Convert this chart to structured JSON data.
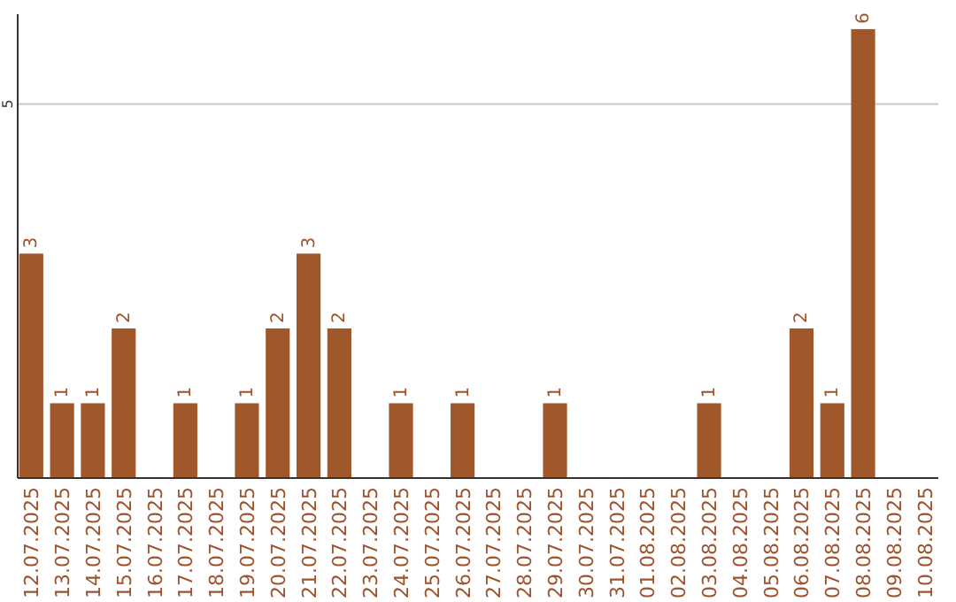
{
  "chart_data": {
    "type": "bar",
    "categories": [
      "12.07.2025",
      "13.07.2025",
      "14.07.2025",
      "15.07.2025",
      "16.07.2025",
      "17.07.2025",
      "18.07.2025",
      "19.07.2025",
      "20.07.2025",
      "21.07.2025",
      "22.07.2025",
      "23.07.2025",
      "24.07.2025",
      "25.07.2025",
      "26.07.2025",
      "27.07.2025",
      "28.07.2025",
      "29.07.2025",
      "30.07.2025",
      "31.07.2025",
      "01.08.2025",
      "02.08.2025",
      "03.08.2025",
      "04.08.2025",
      "05.08.2025",
      "06.08.2025",
      "07.08.2025",
      "08.08.2025",
      "09.08.2025",
      "10.08.2025"
    ],
    "values": [
      3,
      1,
      1,
      2,
      0,
      1,
      0,
      1,
      2,
      3,
      2,
      0,
      1,
      0,
      1,
      0,
      0,
      1,
      0,
      0,
      0,
      0,
      1,
      0,
      0,
      2,
      1,
      6,
      0,
      0
    ],
    "value_labels": [
      "3",
      "1",
      "1",
      "2",
      null,
      "1",
      null,
      "1",
      "2",
      "3",
      "2",
      null,
      "1",
      null,
      "1",
      null,
      null,
      "1",
      null,
      null,
      null,
      null,
      "1",
      null,
      null,
      "2",
      "1",
      "6",
      null,
      null
    ],
    "color": "#a0582a",
    "ylim": [
      0,
      6.2
    ],
    "yticks": [
      5
    ],
    "grid": "y"
  }
}
